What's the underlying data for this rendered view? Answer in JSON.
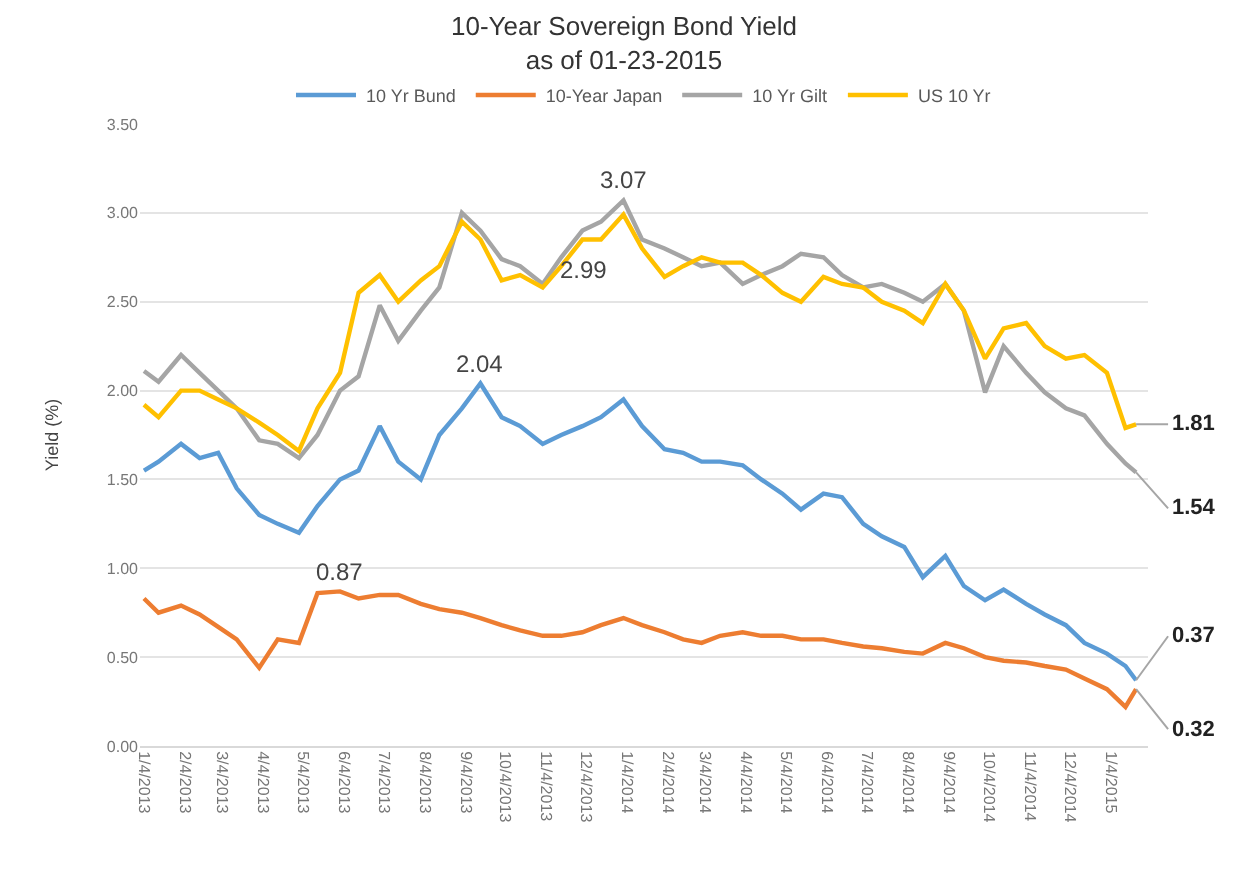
{
  "chart_data": {
    "type": "line",
    "title": "10-Year Sovereign Bond Yield",
    "subtitle": "as of 01-23-2015",
    "ylabel": "Yield (%)",
    "x": [
      "2013-01-04",
      "2013-01-15",
      "2013-02-01",
      "2013-02-15",
      "2013-03-01",
      "2013-03-15",
      "2013-04-01",
      "2013-04-15",
      "2013-05-01",
      "2013-05-15",
      "2013-06-01",
      "2013-06-15",
      "2013-07-01",
      "2013-07-15",
      "2013-08-01",
      "2013-08-15",
      "2013-09-01",
      "2013-09-15",
      "2013-10-01",
      "2013-10-15",
      "2013-11-01",
      "2013-11-15",
      "2013-12-01",
      "2013-12-15",
      "2014-01-01",
      "2014-01-15",
      "2014-02-01",
      "2014-02-15",
      "2014-03-01",
      "2014-03-15",
      "2014-04-01",
      "2014-04-15",
      "2014-05-01",
      "2014-05-15",
      "2014-06-01",
      "2014-06-15",
      "2014-07-01",
      "2014-07-15",
      "2014-08-01",
      "2014-08-15",
      "2014-09-01",
      "2014-09-15",
      "2014-10-01",
      "2014-10-15",
      "2014-11-01",
      "2014-11-15",
      "2014-12-01",
      "2014-12-15",
      "2015-01-01",
      "2015-01-15",
      "2015-01-23"
    ],
    "series": [
      {
        "name": "10 Yr Bund",
        "color": "#5b9bd5",
        "values": [
          1.55,
          1.6,
          1.7,
          1.62,
          1.65,
          1.45,
          1.3,
          1.25,
          1.2,
          1.35,
          1.5,
          1.55,
          1.8,
          1.6,
          1.5,
          1.75,
          1.9,
          2.04,
          1.85,
          1.8,
          1.7,
          1.75,
          1.8,
          1.85,
          1.95,
          1.8,
          1.67,
          1.65,
          1.6,
          1.6,
          1.58,
          1.5,
          1.42,
          1.33,
          1.42,
          1.4,
          1.25,
          1.18,
          1.12,
          0.95,
          1.07,
          0.9,
          0.82,
          0.88,
          0.8,
          0.74,
          0.68,
          0.58,
          0.52,
          0.45,
          0.37
        ]
      },
      {
        "name": "10-Year Japan",
        "color": "#ed7d31",
        "values": [
          0.83,
          0.75,
          0.79,
          0.74,
          0.67,
          0.6,
          0.44,
          0.6,
          0.58,
          0.86,
          0.87,
          0.83,
          0.85,
          0.85,
          0.8,
          0.77,
          0.75,
          0.72,
          0.68,
          0.65,
          0.62,
          0.62,
          0.64,
          0.68,
          0.72,
          0.68,
          0.64,
          0.6,
          0.58,
          0.62,
          0.64,
          0.62,
          0.62,
          0.6,
          0.6,
          0.58,
          0.56,
          0.55,
          0.53,
          0.52,
          0.58,
          0.55,
          0.5,
          0.48,
          0.47,
          0.45,
          0.43,
          0.38,
          0.32,
          0.22,
          0.32
        ]
      },
      {
        "name": "10 Yr Gilt",
        "color": "#a5a5a5",
        "values": [
          2.11,
          2.05,
          2.2,
          2.1,
          2.0,
          1.9,
          1.72,
          1.7,
          1.62,
          1.75,
          2.0,
          2.08,
          2.48,
          2.28,
          2.45,
          2.58,
          3.0,
          2.9,
          2.74,
          2.7,
          2.6,
          2.75,
          2.9,
          2.95,
          3.07,
          2.85,
          2.8,
          2.75,
          2.7,
          2.72,
          2.6,
          2.65,
          2.7,
          2.77,
          2.75,
          2.65,
          2.58,
          2.6,
          2.55,
          2.5,
          2.6,
          2.45,
          1.99,
          2.25,
          2.1,
          1.99,
          1.9,
          1.86,
          1.7,
          1.59,
          1.54
        ]
      },
      {
        "name": "US 10 Yr",
        "color": "#ffc000",
        "values": [
          1.92,
          1.85,
          2.0,
          2.0,
          1.95,
          1.9,
          1.82,
          1.75,
          1.66,
          1.9,
          2.1,
          2.55,
          2.65,
          2.5,
          2.62,
          2.7,
          2.95,
          2.85,
          2.62,
          2.65,
          2.58,
          2.7,
          2.85,
          2.85,
          2.99,
          2.8,
          2.64,
          2.7,
          2.75,
          2.72,
          2.72,
          2.65,
          2.55,
          2.5,
          2.64,
          2.6,
          2.58,
          2.5,
          2.45,
          2.38,
          2.6,
          2.45,
          2.18,
          2.35,
          2.38,
          2.25,
          2.18,
          2.2,
          2.1,
          1.79,
          1.81
        ]
      }
    ],
    "xlim": [
      "2013-01-01",
      "2015-02-01"
    ],
    "xticks": [
      {
        "value": "2013-01-04",
        "label": "1/4/2013"
      },
      {
        "value": "2013-02-04",
        "label": "2/4/2013"
      },
      {
        "value": "2013-03-04",
        "label": "3/4/2013"
      },
      {
        "value": "2013-04-04",
        "label": "4/4/2013"
      },
      {
        "value": "2013-05-04",
        "label": "5/4/2013"
      },
      {
        "value": "2013-06-04",
        "label": "6/4/2013"
      },
      {
        "value": "2013-07-04",
        "label": "7/4/2013"
      },
      {
        "value": "2013-08-04",
        "label": "8/4/2013"
      },
      {
        "value": "2013-09-04",
        "label": "9/4/2013"
      },
      {
        "value": "2013-10-04",
        "label": "10/4/2013"
      },
      {
        "value": "2013-11-04",
        "label": "11/4/2013"
      },
      {
        "value": "2013-12-04",
        "label": "12/4/2013"
      },
      {
        "value": "2014-01-04",
        "label": "1/4/2014"
      },
      {
        "value": "2014-02-04",
        "label": "2/4/2014"
      },
      {
        "value": "2014-03-04",
        "label": "3/4/2014"
      },
      {
        "value": "2014-04-04",
        "label": "4/4/2014"
      },
      {
        "value": "2014-05-04",
        "label": "5/4/2014"
      },
      {
        "value": "2014-06-04",
        "label": "6/4/2014"
      },
      {
        "value": "2014-07-04",
        "label": "7/4/2014"
      },
      {
        "value": "2014-08-04",
        "label": "8/4/2014"
      },
      {
        "value": "2014-09-04",
        "label": "9/4/2014"
      },
      {
        "value": "2014-10-04",
        "label": "10/4/2014"
      },
      {
        "value": "2014-11-04",
        "label": "11/4/2014"
      },
      {
        "value": "2014-12-04",
        "label": "12/4/2014"
      },
      {
        "value": "2015-01-04",
        "label": "1/4/2015"
      }
    ],
    "ylim": [
      0,
      3.5
    ],
    "yticks": [
      {
        "value": 0,
        "label": "0.00"
      },
      {
        "value": 0.5,
        "label": "0.50"
      },
      {
        "value": 1,
        "label": "1.00"
      },
      {
        "value": 1.5,
        "label": "1.50"
      },
      {
        "value": 2,
        "label": "2.00"
      },
      {
        "value": 2.5,
        "label": "2.50"
      },
      {
        "value": 3,
        "label": "3.00"
      },
      {
        "value": 3.5,
        "label": "3.50"
      }
    ],
    "grid": "y",
    "legend": "top",
    "marker": "none",
    "line_style": "solid",
    "annotations": [
      {
        "text": "3.07",
        "x": "2014-01-01",
        "y": 3.07
      },
      {
        "text": "2.99",
        "x": "2014-01-01",
        "y": 2.99
      },
      {
        "text": "2.04",
        "x": "2013-09-15",
        "y": 2.04
      },
      {
        "text": "0.87",
        "x": "2013-06-01",
        "y": 0.87
      },
      {
        "text": "1.81",
        "x": "2015-01-23",
        "y": 1.81
      },
      {
        "text": "1.54",
        "x": "2015-01-23",
        "y": 1.54
      },
      {
        "text": "0.37",
        "x": "2015-01-23",
        "y": 0.37
      },
      {
        "text": "0.32",
        "x": "2015-01-23",
        "y": 0.32
      }
    ]
  }
}
